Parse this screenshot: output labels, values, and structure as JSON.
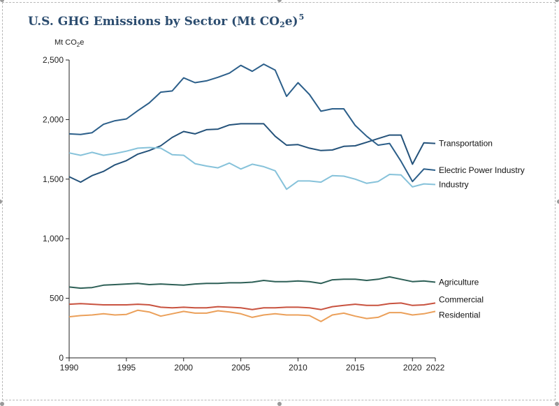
{
  "chart_data": {
    "type": "line",
    "title": {
      "prefix": "U.S. GHG Emissions by Sector (Mt CO",
      "subscript": "2",
      "suffix": "e)",
      "superscript": "5"
    },
    "ylabel": {
      "main": "Mt CO",
      "subscript": "2",
      "suffix": "e"
    },
    "xlabel": "",
    "ylim": [
      0,
      2500
    ],
    "xlim": [
      1990,
      2022
    ],
    "y_ticks": [
      0,
      500,
      1000,
      1500,
      2000,
      2500
    ],
    "y_tick_labels": [
      "0",
      "500",
      "1,000",
      "1,500",
      "2,000",
      "2,500"
    ],
    "x_ticks": [
      1990,
      1995,
      2000,
      2005,
      2010,
      2015,
      2020,
      2022
    ],
    "x_tick_labels": [
      "1990",
      "1995",
      "2000",
      "2005",
      "2010",
      "2015",
      "2020",
      "2022"
    ],
    "grid": false,
    "legend": "direct labels at line ends",
    "x": [
      1990,
      1991,
      1992,
      1993,
      1994,
      1995,
      1996,
      1997,
      1998,
      1999,
      2000,
      2001,
      2002,
      2003,
      2004,
      2005,
      2006,
      2007,
      2008,
      2009,
      2010,
      2011,
      2012,
      2013,
      2014,
      2015,
      2016,
      2017,
      2018,
      2019,
      2020,
      2021,
      2022
    ],
    "series": [
      {
        "name": "Transportation",
        "color": "#24527a",
        "values": [
          1520,
          1475,
          1530,
          1565,
          1620,
          1655,
          1710,
          1740,
          1780,
          1850,
          1900,
          1880,
          1915,
          1920,
          1955,
          1965,
          1965,
          1965,
          1860,
          1785,
          1790,
          1760,
          1740,
          1745,
          1775,
          1780,
          1810,
          1840,
          1870,
          1870,
          1625,
          1805,
          1800
        ]
      },
      {
        "name": "Electric Power Industry",
        "color": "#2c5f8a",
        "values": [
          1880,
          1875,
          1890,
          1960,
          1990,
          2005,
          2075,
          2140,
          2230,
          2240,
          2350,
          2310,
          2325,
          2355,
          2390,
          2455,
          2405,
          2465,
          2415,
          2195,
          2310,
          2210,
          2070,
          2090,
          2090,
          1950,
          1860,
          1785,
          1800,
          1650,
          1480,
          1585,
          1575
        ]
      },
      {
        "name": "Industry",
        "color": "#86c2da",
        "values": [
          1720,
          1700,
          1725,
          1700,
          1715,
          1735,
          1760,
          1765,
          1760,
          1705,
          1700,
          1630,
          1610,
          1595,
          1635,
          1585,
          1625,
          1605,
          1570,
          1415,
          1485,
          1485,
          1475,
          1530,
          1525,
          1500,
          1465,
          1480,
          1540,
          1535,
          1435,
          1460,
          1455
        ]
      },
      {
        "name": "Agriculture",
        "color": "#2d5f56",
        "values": [
          595,
          585,
          590,
          610,
          615,
          620,
          625,
          615,
          620,
          615,
          610,
          620,
          625,
          625,
          630,
          630,
          635,
          650,
          640,
          640,
          645,
          640,
          625,
          655,
          660,
          660,
          650,
          660,
          680,
          660,
          640,
          645,
          635
        ]
      },
      {
        "name": "Commercial",
        "color": "#c8523f",
        "values": [
          450,
          455,
          450,
          445,
          445,
          445,
          450,
          445,
          425,
          420,
          425,
          420,
          420,
          430,
          425,
          420,
          405,
          420,
          420,
          425,
          425,
          420,
          405,
          430,
          440,
          450,
          440,
          440,
          455,
          460,
          440,
          445,
          460
        ]
      },
      {
        "name": "Residential",
        "color": "#eba05a",
        "values": [
          345,
          355,
          360,
          370,
          360,
          365,
          400,
          385,
          350,
          370,
          390,
          375,
          375,
          395,
          385,
          370,
          340,
          360,
          370,
          360,
          360,
          355,
          305,
          360,
          375,
          350,
          330,
          340,
          380,
          380,
          360,
          370,
          390
        ]
      }
    ]
  }
}
